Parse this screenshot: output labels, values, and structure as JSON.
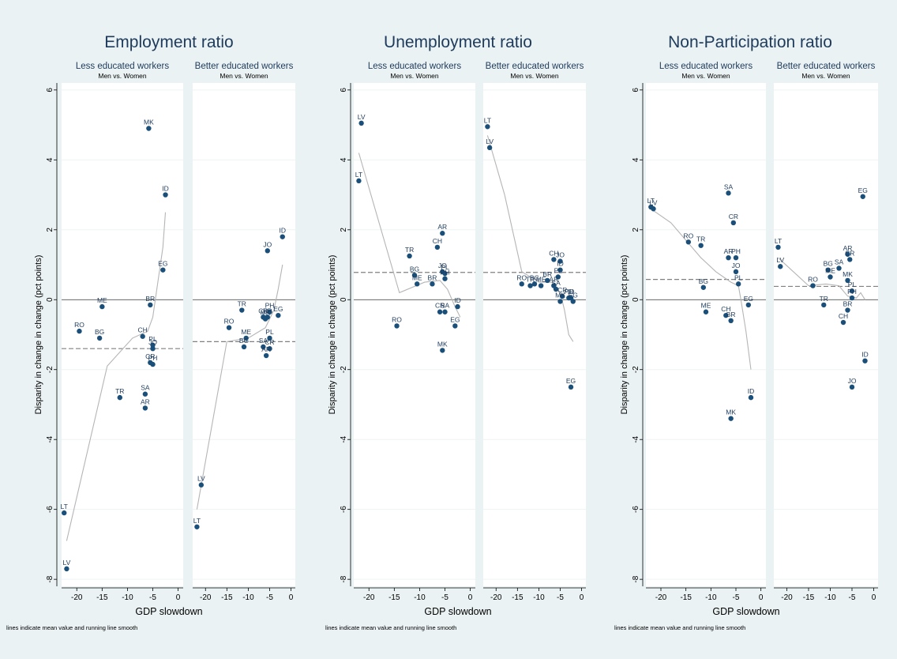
{
  "common": {
    "ylabel": "Disparity in change in change (pct points)",
    "xlabel": "GDP slowdown",
    "subtitle2": "Men vs. Women",
    "note": "lines indicate mean value and running line smooth",
    "yticks": [
      "6",
      "4",
      "2",
      "0",
      "-2",
      "-4",
      "-6",
      "-8"
    ],
    "xticks": [
      "-20",
      "-15",
      "-10",
      "-5",
      "0"
    ],
    "colors": {
      "background": "#eaf2f3",
      "panel": "#ffffff",
      "point": "#1a4f7a",
      "label": "#1e3b5c",
      "smooth": "#b5b5b5",
      "mean": "#808080"
    }
  },
  "chart_data": [
    {
      "type": "scatter",
      "title": "Employment ratio",
      "xlabel": "GDP slowdown",
      "ylabel": "Disparity in change in change (pct points)",
      "xlim": [
        -23,
        1
      ],
      "ylim": [
        -8.2,
        6.2
      ],
      "panels": [
        {
          "subtitle": "Less educated workers",
          "mean": -1.4,
          "points": [
            {
              "label": "MK",
              "x": -5.8,
              "y": 4.9
            },
            {
              "label": "ID",
              "x": -2.5,
              "y": 3.0
            },
            {
              "label": "EG",
              "x": -3.0,
              "y": 0.85
            },
            {
              "label": "ME",
              "x": -15.0,
              "y": -0.2
            },
            {
              "label": "BR",
              "x": -5.5,
              "y": -0.15
            },
            {
              "label": "RO",
              "x": -19.5,
              "y": -0.9
            },
            {
              "label": "CH",
              "x": -7.0,
              "y": -1.05
            },
            {
              "label": "BG",
              "x": -15.5,
              "y": -1.1
            },
            {
              "label": "PL",
              "x": -5.0,
              "y": -1.3
            },
            {
              "label": "JO",
              "x": -5.0,
              "y": -1.4
            },
            {
              "label": "CR",
              "x": -5.5,
              "y": -1.8
            },
            {
              "label": "PH",
              "x": -5.0,
              "y": -1.85
            },
            {
              "label": "TR",
              "x": -11.5,
              "y": -2.8
            },
            {
              "label": "SA",
              "x": -6.5,
              "y": -2.7
            },
            {
              "label": "AR",
              "x": -6.5,
              "y": -3.1
            },
            {
              "label": "LT",
              "x": -22.5,
              "y": -6.1
            },
            {
              "label": "LV",
              "x": -22.0,
              "y": -7.7
            }
          ],
          "smooth": [
            [
              -22,
              -6.9
            ],
            [
              -14,
              -1.9
            ],
            [
              -9,
              -1.1
            ],
            [
              -6,
              -0.9
            ],
            [
              -5,
              -0.5
            ],
            [
              -4,
              0.5
            ],
            [
              -3,
              1.5
            ],
            [
              -2.5,
              2.5
            ]
          ]
        },
        {
          "subtitle": "Better educated workers",
          "mean": -1.2,
          "points": [
            {
              "label": "ID",
              "x": -2.0,
              "y": 1.8
            },
            {
              "label": "JO",
              "x": -5.5,
              "y": 1.4
            },
            {
              "label": "TR",
              "x": -11.5,
              "y": -0.3
            },
            {
              "label": "PH",
              "x": -5.0,
              "y": -0.35
            },
            {
              "label": "EG",
              "x": -3.0,
              "y": -0.45
            },
            {
              "label": "CR",
              "x": -6.5,
              "y": -0.5
            },
            {
              "label": "BR",
              "x": -5.5,
              "y": -0.5
            },
            {
              "label": "RO",
              "x": -14.5,
              "y": -0.8
            },
            {
              "label": "MK",
              "x": -6.0,
              "y": -0.55
            },
            {
              "label": "ME",
              "x": -10.5,
              "y": -1.1
            },
            {
              "label": "PL",
              "x": -5.0,
              "y": -1.1
            },
            {
              "label": "BG",
              "x": -11.0,
              "y": -1.35
            },
            {
              "label": "CR",
              "x": -5.0,
              "y": -1.4
            },
            {
              "label": "SA",
              "x": -6.5,
              "y": -1.35
            },
            {
              "label": "AR",
              "x": -5.8,
              "y": -1.6
            },
            {
              "label": "LV",
              "x": -21.0,
              "y": -5.3
            },
            {
              "label": "LT",
              "x": -22.0,
              "y": -6.5
            }
          ],
          "smooth": [
            [
              -22,
              -6.0
            ],
            [
              -15,
              -1.2
            ],
            [
              -10,
              -1.1
            ],
            [
              -6,
              -0.8
            ],
            [
              -4,
              -0.3
            ],
            [
              -3,
              0.3
            ],
            [
              -2,
              1.0
            ]
          ]
        }
      ]
    },
    {
      "type": "scatter",
      "title": "Unemployment ratio",
      "xlabel": "GDP slowdown",
      "ylabel": "Disparity in change in change (pct points)",
      "xlim": [
        -23,
        1
      ],
      "ylim": [
        -8.2,
        6.2
      ],
      "panels": [
        {
          "subtitle": "Less educated workers",
          "mean": 0.78,
          "points": [
            {
              "label": "LV",
              "x": -21.5,
              "y": 5.05
            },
            {
              "label": "LT",
              "x": -22.0,
              "y": 3.4
            },
            {
              "label": "AR",
              "x": -5.5,
              "y": 1.9
            },
            {
              "label": "CH",
              "x": -6.5,
              "y": 1.5
            },
            {
              "label": "TR",
              "x": -12.0,
              "y": 1.25
            },
            {
              "label": "BG",
              "x": -11.0,
              "y": 0.7
            },
            {
              "label": "JO",
              "x": -5.5,
              "y": 0.8
            },
            {
              "label": "PL",
              "x": -5.0,
              "y": 0.75
            },
            {
              "label": "PH",
              "x": -5.0,
              "y": 0.6
            },
            {
              "label": "BR",
              "x": -7.5,
              "y": 0.45
            },
            {
              "label": "ME",
              "x": -10.5,
              "y": 0.45
            },
            {
              "label": "ID",
              "x": -2.5,
              "y": -0.2
            },
            {
              "label": "CR",
              "x": -6.0,
              "y": -0.35
            },
            {
              "label": "SA",
              "x": -5.0,
              "y": -0.35
            },
            {
              "label": "RO",
              "x": -14.5,
              "y": -0.75
            },
            {
              "label": "EG",
              "x": -3.0,
              "y": -0.75
            },
            {
              "label": "MK",
              "x": -5.5,
              "y": -1.45
            }
          ],
          "smooth": [
            [
              -22,
              4.2
            ],
            [
              -14,
              0.2
            ],
            [
              -9,
              0.5
            ],
            [
              -6,
              0.55
            ],
            [
              -4.5,
              0.3
            ],
            [
              -3,
              -0.2
            ],
            [
              -2,
              -0.5
            ]
          ]
        },
        {
          "subtitle": "Better educated workers",
          "mean": 0.78,
          "points": [
            {
              "label": "LT",
              "x": -22.0,
              "y": 4.95
            },
            {
              "label": "LV",
              "x": -21.5,
              "y": 4.35
            },
            {
              "label": "CH",
              "x": -6.5,
              "y": 1.15
            },
            {
              "label": "JO",
              "x": -5.0,
              "y": 1.1
            },
            {
              "label": "ID",
              "x": -5.0,
              "y": 0.85
            },
            {
              "label": "PL",
              "x": -5.5,
              "y": 0.65
            },
            {
              "label": "BR",
              "x": -8.0,
              "y": 0.55
            },
            {
              "label": "BG",
              "x": -11.0,
              "y": 0.45
            },
            {
              "label": "ME",
              "x": -9.5,
              "y": 0.4
            },
            {
              "label": "RO",
              "x": -14.0,
              "y": 0.45
            },
            {
              "label": "AR",
              "x": -6.5,
              "y": 0.4
            },
            {
              "label": "SA",
              "x": -6.0,
              "y": 0.3
            },
            {
              "label": "TR",
              "x": -12.0,
              "y": 0.4
            },
            {
              "label": "CR",
              "x": -4.5,
              "y": 0.1
            },
            {
              "label": "PH",
              "x": -3.0,
              "y": 0.05
            },
            {
              "label": "ID",
              "x": -2.5,
              "y": 0.05
            },
            {
              "label": "EG",
              "x": -2.0,
              "y": -0.05
            },
            {
              "label": "MK",
              "x": -5.0,
              "y": -0.05
            },
            {
              "label": "EG",
              "x": -2.5,
              "y": -2.5
            }
          ],
          "smooth": [
            [
              -22,
              4.7
            ],
            [
              -18,
              3.0
            ],
            [
              -14,
              0.8
            ],
            [
              -10,
              0.5
            ],
            [
              -7,
              0.5
            ],
            [
              -5,
              0.2
            ],
            [
              -4,
              -0.3
            ],
            [
              -3,
              -1.0
            ],
            [
              -2,
              -1.2
            ]
          ]
        }
      ]
    },
    {
      "type": "scatter",
      "title": "Non-Participation ratio",
      "xlabel": "GDP slowdown",
      "ylabel": "Disparity in change in change (pct points)",
      "xlim": [
        -23,
        1
      ],
      "ylim": [
        -8.2,
        6.2
      ],
      "panels": [
        {
          "subtitle": "Less educated workers",
          "mean": 0.58,
          "points": [
            {
              "label": "SA",
              "x": -6.5,
              "y": 3.05
            },
            {
              "label": "LT",
              "x": -22.0,
              "y": 2.65
            },
            {
              "label": "LV",
              "x": -21.5,
              "y": 2.6
            },
            {
              "label": "CR",
              "x": -5.5,
              "y": 2.2
            },
            {
              "label": "RO",
              "x": -14.5,
              "y": 1.65
            },
            {
              "label": "TR",
              "x": -12.0,
              "y": 1.55
            },
            {
              "label": "AR",
              "x": -6.5,
              "y": 1.2
            },
            {
              "label": "PH",
              "x": -5.0,
              "y": 1.2
            },
            {
              "label": "JO",
              "x": -5.0,
              "y": 0.8
            },
            {
              "label": "BG",
              "x": -11.5,
              "y": 0.35
            },
            {
              "label": "PL",
              "x": -4.5,
              "y": 0.45
            },
            {
              "label": "EG",
              "x": -2.5,
              "y": -0.15
            },
            {
              "label": "ME",
              "x": -11.0,
              "y": -0.35
            },
            {
              "label": "CH",
              "x": -7.0,
              "y": -0.45
            },
            {
              "label": "BR",
              "x": -6.0,
              "y": -0.6
            },
            {
              "label": "ID",
              "x": -2.0,
              "y": -2.8
            },
            {
              "label": "MK",
              "x": -6.0,
              "y": -3.4
            }
          ],
          "smooth": [
            [
              -22,
              2.6
            ],
            [
              -18,
              2.2
            ],
            [
              -12,
              1.2
            ],
            [
              -9,
              0.8
            ],
            [
              -6,
              0.5
            ],
            [
              -4.5,
              0.4
            ],
            [
              -4,
              0.0
            ],
            [
              -3,
              -0.9
            ],
            [
              -2,
              -2.0
            ]
          ]
        },
        {
          "subtitle": "Better educated workers",
          "mean": 0.38,
          "points": [
            {
              "label": "EG",
              "x": -2.5,
              "y": 2.95
            },
            {
              "label": "LT",
              "x": -22.0,
              "y": 1.5
            },
            {
              "label": "AR",
              "x": -6.0,
              "y": 1.3
            },
            {
              "label": "CR",
              "x": -5.5,
              "y": 1.15
            },
            {
              "label": "LV",
              "x": -21.5,
              "y": 0.95
            },
            {
              "label": "BG",
              "x": -10.5,
              "y": 0.85
            },
            {
              "label": "SA",
              "x": -8.0,
              "y": 0.9
            },
            {
              "label": "ME",
              "x": -10.0,
              "y": 0.65
            },
            {
              "label": "MK",
              "x": -6.0,
              "y": 0.55
            },
            {
              "label": "RO",
              "x": -14.0,
              "y": 0.4
            },
            {
              "label": "PL",
              "x": -5.0,
              "y": 0.25
            },
            {
              "label": "TR",
              "x": -11.5,
              "y": -0.15
            },
            {
              "label": "BR",
              "x": -6.0,
              "y": -0.3
            },
            {
              "label": "PH",
              "x": -5.0,
              "y": 0.05
            },
            {
              "label": "CH",
              "x": -7.0,
              "y": -0.65
            },
            {
              "label": "ID",
              "x": -2.0,
              "y": -1.75
            },
            {
              "label": "JO",
              "x": -5.0,
              "y": -2.5
            }
          ],
          "smooth": [
            [
              -22,
              1.2
            ],
            [
              -15,
              0.4
            ],
            [
              -11,
              0.45
            ],
            [
              -8,
              0.4
            ],
            [
              -6,
              0.1
            ],
            [
              -4,
              0.05
            ],
            [
              -3,
              0.2
            ],
            [
              -2,
              0.0
            ]
          ]
        }
      ]
    }
  ]
}
